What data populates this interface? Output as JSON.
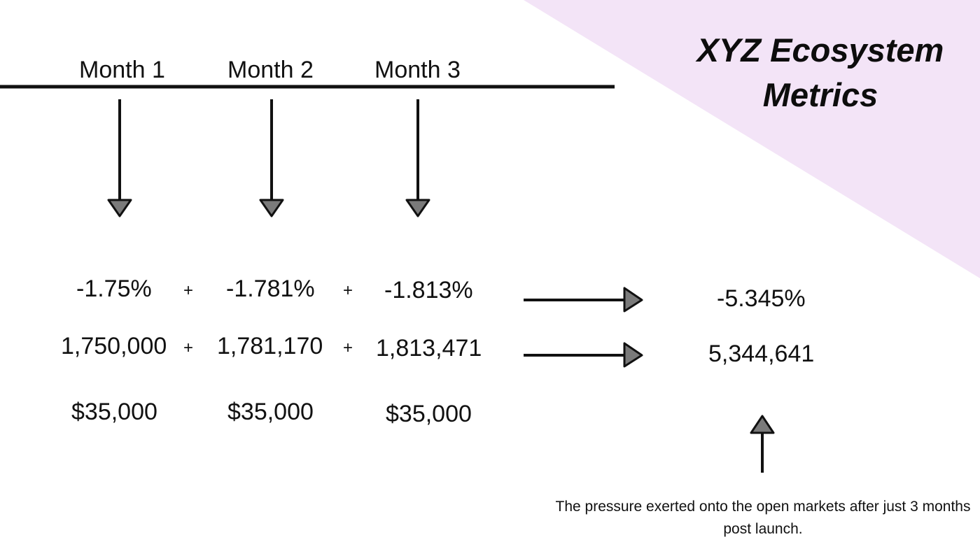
{
  "title_line1": "XYZ Ecosystem",
  "title_line2": "Metrics",
  "months": [
    "Month 1",
    "Month 2",
    "Month 3"
  ],
  "percent_values": [
    "-1.75%",
    "-1.781%",
    "-1.813%"
  ],
  "token_values": [
    "1,750,000",
    "1,781,170",
    "1,813,471"
  ],
  "usd_values": [
    "$35,000",
    "$35,000",
    "$35,000"
  ],
  "plus_sign": "+",
  "percent_total": "-5.345%",
  "token_total": "5,344,641",
  "caption": "The pressure exerted onto the open markets after just 3 months post launch.",
  "colors": {
    "background": "#ffffff",
    "corner_triangle": "#f3e4f7",
    "line": "#111111",
    "arrowhead_fill": "#7a7a7a",
    "text": "#111111"
  }
}
